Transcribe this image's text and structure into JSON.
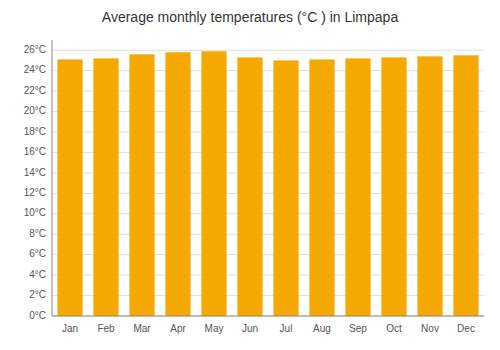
{
  "chart_data": {
    "type": "bar",
    "title": "Average monthly temperatures (°C ) in Limpapa",
    "categories": [
      "Jan",
      "Feb",
      "Mar",
      "Apr",
      "May",
      "Jun",
      "Jul",
      "Aug",
      "Sep",
      "Oct",
      "Nov",
      "Dec"
    ],
    "values": [
      25.1,
      25.2,
      25.6,
      25.8,
      25.9,
      25.3,
      25.0,
      25.1,
      25.2,
      25.3,
      25.4,
      25.5
    ],
    "color": "#F5A800",
    "ylim": [
      0,
      27
    ],
    "yticks": [
      {
        "value": 0,
        "label": "0°C"
      },
      {
        "value": 2,
        "label": "2°C"
      },
      {
        "value": 4,
        "label": "4°C"
      },
      {
        "value": 6,
        "label": "6°C"
      },
      {
        "value": 8,
        "label": "8°C"
      },
      {
        "value": 10,
        "label": "10°C"
      },
      {
        "value": 12,
        "label": "12°C"
      },
      {
        "value": 14,
        "label": "14°C"
      },
      {
        "value": 16,
        "label": "16°C"
      },
      {
        "value": 18,
        "label": "18°C"
      },
      {
        "value": 20,
        "label": "20°C"
      },
      {
        "value": 22,
        "label": "22°C"
      },
      {
        "value": 24,
        "label": "24°C"
      },
      {
        "value": 26,
        "label": "26°C"
      }
    ],
    "grid": true
  }
}
